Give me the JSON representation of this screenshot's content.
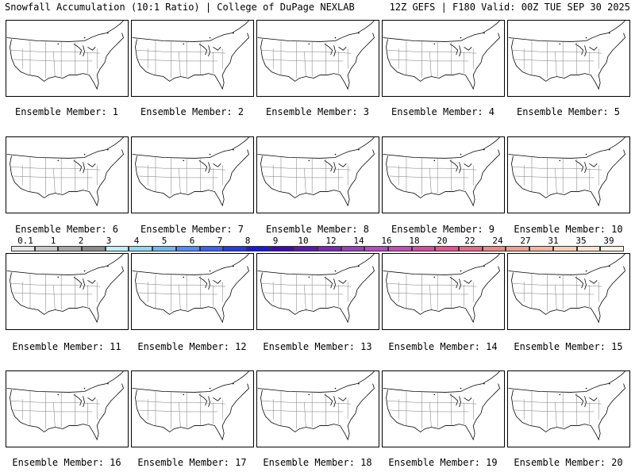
{
  "header": {
    "left": "Snowfall Accumulation (10:1 Ratio) | College of DuPage NEXLAB",
    "right": "12Z GEFS | F180 Valid: 00Z TUE SEP 30 2025"
  },
  "members": [
    "Ensemble Member: 1",
    "Ensemble Member: 2",
    "Ensemble Member: 3",
    "Ensemble Member: 4",
    "Ensemble Member: 5",
    "Ensemble Member: 6",
    "Ensemble Member: 7",
    "Ensemble Member: 8",
    "Ensemble Member: 9",
    "Ensemble Member: 10",
    "Ensemble Member: 11",
    "Ensemble Member: 12",
    "Ensemble Member: 13",
    "Ensemble Member: 14",
    "Ensemble Member: 15",
    "Ensemble Member: 16",
    "Ensemble Member: 17",
    "Ensemble Member: 18",
    "Ensemble Member: 19",
    "Ensemble Member: 20"
  ],
  "colorbar": {
    "labels": [
      "0.1",
      "1",
      "2",
      "3",
      "4",
      "5",
      "6",
      "7",
      "8",
      "9",
      "10",
      "12",
      "14",
      "16",
      "18",
      "20",
      "22",
      "24",
      "27",
      "31",
      "35",
      "39"
    ],
    "colors": [
      "#e6e6e6",
      "#c8c8c8",
      "#a6a6a6",
      "#8a8a8a",
      "#bfeff5",
      "#8fd8ee",
      "#6cb8f0",
      "#4f8ef0",
      "#3a63e8",
      "#2a3bd8",
      "#1d1ac8",
      "#3b0da8",
      "#5a1aa8",
      "#7a2aaa",
      "#9a40b8",
      "#b050c0",
      "#c050b8",
      "#d050a0",
      "#dc5890",
      "#e46a8a",
      "#e88a8a",
      "#eca090",
      "#f0b8a0",
      "#f4d0b8",
      "#f8e4d0",
      "#fcf2e4"
    ]
  }
}
